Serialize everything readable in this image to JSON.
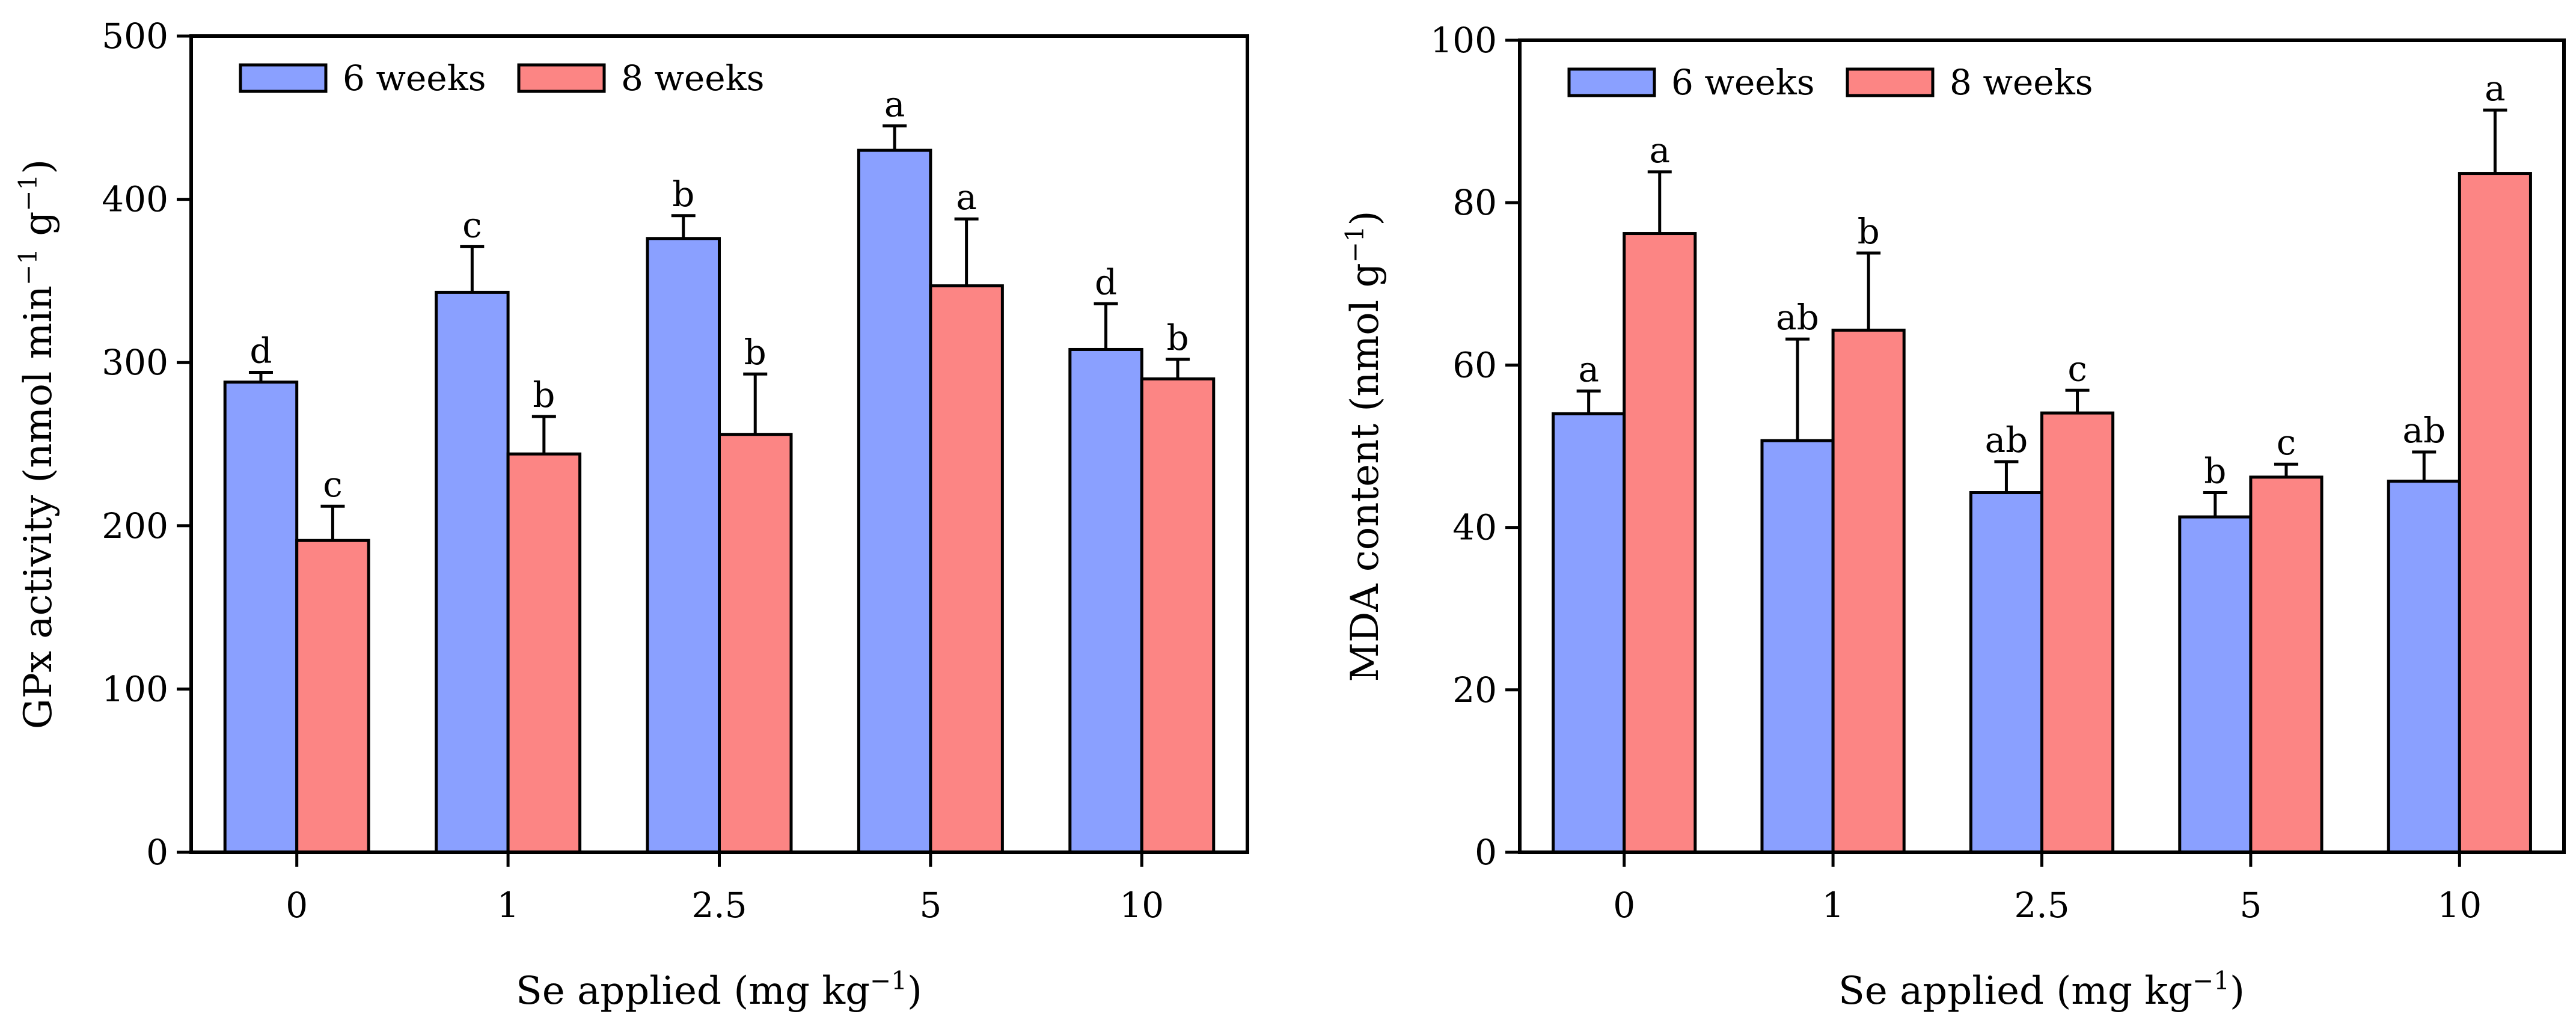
{
  "chart_data": [
    {
      "type": "bar",
      "categories": [
        "0",
        "1",
        "2.5",
        "5",
        "10"
      ],
      "xlabel": "Se applied (mg kg",
      "xlabel_sup": "−1",
      "xlabel_end": ")",
      "ylabel_parts": [
        "GPx activity (nmol min",
        "−1",
        " g",
        "−1",
        ")"
      ],
      "ylim": [
        0,
        500
      ],
      "yticks": [
        0,
        100,
        200,
        300,
        400,
        500
      ],
      "legend_position": "top-left",
      "series": [
        {
          "name": "6 weeks",
          "color": "#8aa0ff",
          "values": [
            288,
            343,
            376,
            430,
            308
          ],
          "errors": [
            6,
            28,
            14,
            15,
            28
          ],
          "labels": [
            "d",
            "c",
            "b",
            "a",
            "d"
          ]
        },
        {
          "name": "8 weeks",
          "color": "#fc8584",
          "values": [
            191,
            244,
            256,
            347,
            290
          ],
          "errors": [
            21,
            23,
            37,
            41,
            12
          ],
          "labels": [
            "c",
            "b",
            "b",
            "a",
            "b"
          ]
        }
      ]
    },
    {
      "type": "bar",
      "categories": [
        "0",
        "1",
        "2.5",
        "5",
        "10"
      ],
      "xlabel": "Se applied (mg kg",
      "xlabel_sup": "−1",
      "xlabel_end": ")",
      "ylabel_parts": [
        "MDA content (nmol g",
        "−1",
        ")"
      ],
      "ylim": [
        0,
        100
      ],
      "yticks": [
        0,
        20,
        40,
        60,
        80,
        100
      ],
      "legend_position": "top-left",
      "series": [
        {
          "name": "6 weeks",
          "color": "#8aa0ff",
          "values": [
            54,
            50.7,
            44.3,
            41.3,
            45.7
          ],
          "errors": [
            2.8,
            12.5,
            3.8,
            3,
            3.6
          ],
          "labels": [
            "a",
            "ab",
            "ab",
            "b",
            "ab"
          ]
        },
        {
          "name": "8 weeks",
          "color": "#fc8584",
          "values": [
            76.2,
            64.3,
            54.1,
            46.2,
            83.6
          ],
          "errors": [
            7.6,
            9.5,
            2.8,
            1.6,
            7.8
          ],
          "labels": [
            "a",
            "b",
            "c",
            "c",
            "a"
          ]
        }
      ]
    }
  ]
}
